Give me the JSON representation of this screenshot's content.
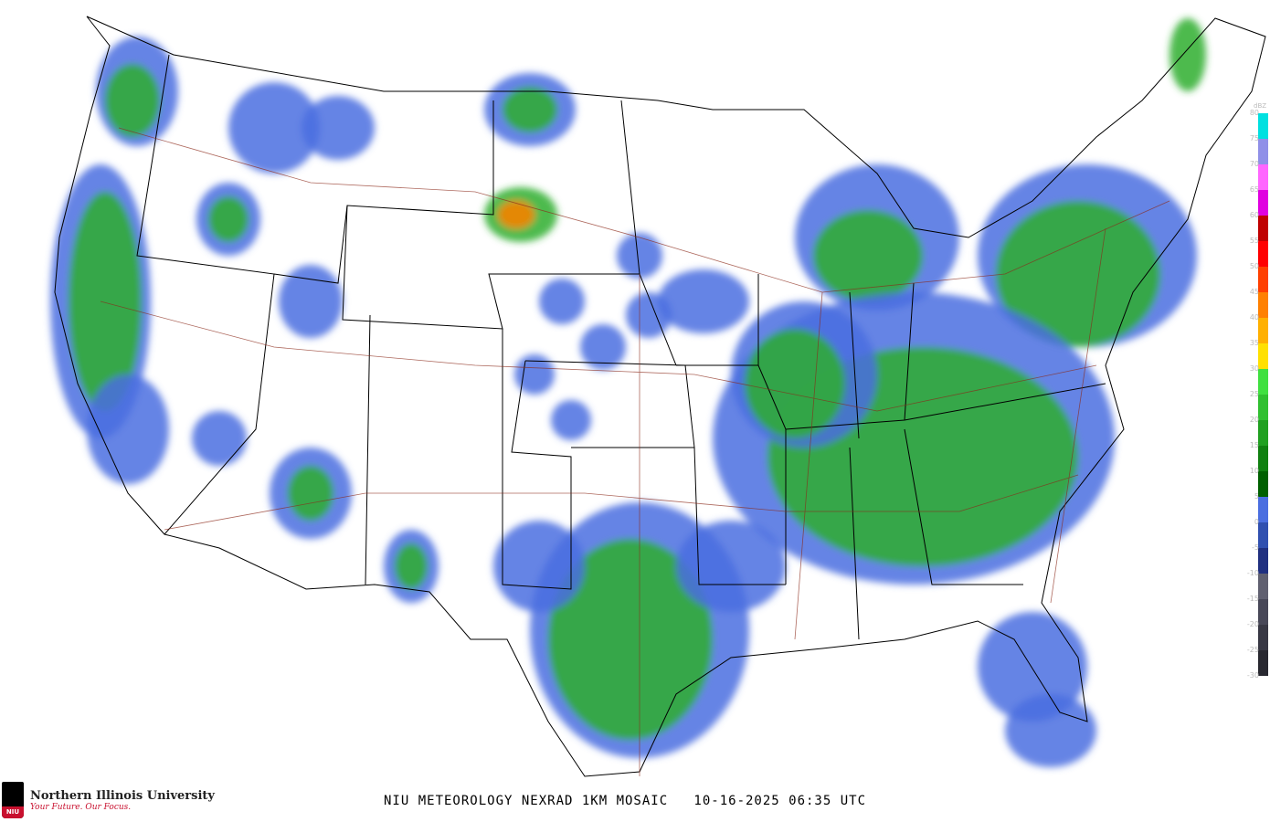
{
  "title": "NIU METEOROLOGY NEXRAD 1KM MOSAIC   10-16-2025 06:35 UTC",
  "logo": {
    "name": "Northern Illinois University",
    "tagline": "Your Future. Our Focus.",
    "shield_text": "NIU"
  },
  "legend": {
    "unit": "dBZ",
    "labels": [
      "80",
      "75",
      "70",
      "65",
      "60",
      "55",
      "50",
      "45",
      "40",
      "35",
      "30",
      "25",
      "20",
      "15",
      "10",
      "5",
      "0",
      "-5",
      "-10",
      "-15",
      "-20",
      "-25",
      "-30"
    ],
    "colors": [
      "#00e0e0",
      "#9090e8",
      "#ff66ff",
      "#e000e0",
      "#c00000",
      "#ff0000",
      "#ff4000",
      "#ff8000",
      "#ffb000",
      "#ffe000",
      "#40e040",
      "#30c030",
      "#20a020",
      "#108010",
      "#006000",
      "#4a6ee0",
      "#3050b0",
      "#203080",
      "#606070",
      "#484858",
      "#383844",
      "#282830"
    ]
  },
  "colors": {
    "light_echo": "#4a6ee0",
    "moderate_echo": "#2fae2f",
    "heavy_echo": "#ff8000",
    "state_lines": "#000000",
    "highways": "#8b2a1a"
  }
}
